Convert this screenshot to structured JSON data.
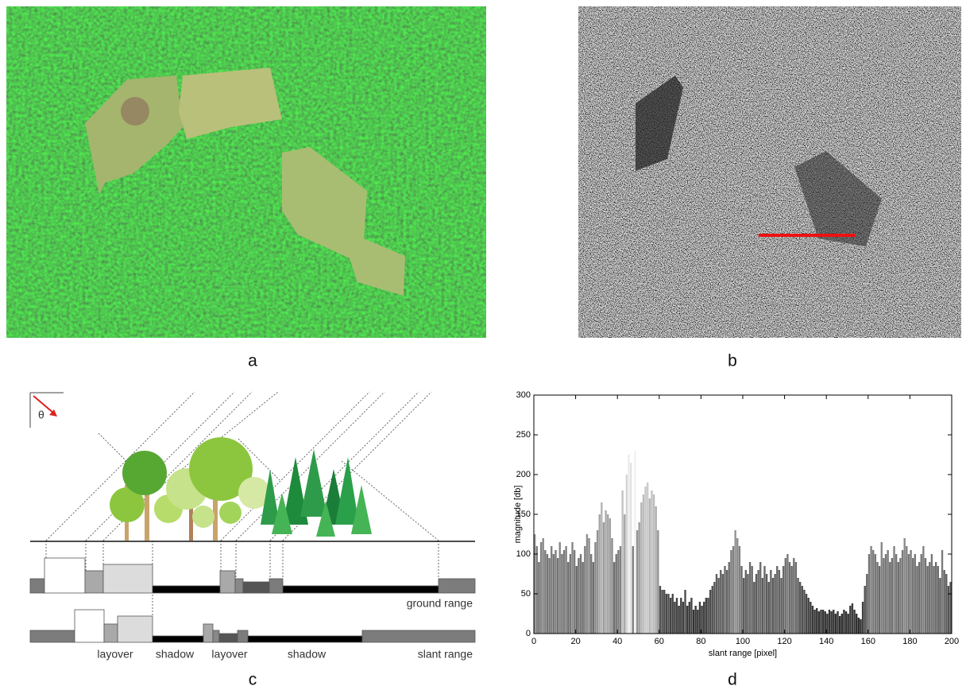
{
  "panels": {
    "a": "a",
    "b": "b",
    "c": "c",
    "d": "d"
  },
  "diagram": {
    "theta": "θ",
    "ground_range_label": "ground range",
    "slant_range_label": "slant range",
    "zone_labels": [
      "layover",
      "shadow",
      "layover",
      "shadow"
    ]
  },
  "chart_data": {
    "type": "bar",
    "xlabel": "slant range [pixel]",
    "ylabel": "magnitude [db]",
    "colormap": "gray",
    "xlim": [
      0,
      200
    ],
    "ylim": [
      0,
      300
    ],
    "xticks": [
      0,
      20,
      40,
      60,
      80,
      100,
      120,
      140,
      160,
      180,
      200
    ],
    "yticks": [
      0,
      50,
      100,
      150,
      200,
      250,
      300
    ],
    "x": [
      0,
      1,
      2,
      3,
      4,
      5,
      6,
      7,
      8,
      9,
      10,
      11,
      12,
      13,
      14,
      15,
      16,
      17,
      18,
      19,
      20,
      21,
      22,
      23,
      24,
      25,
      26,
      27,
      28,
      29,
      30,
      31,
      32,
      33,
      34,
      35,
      36,
      37,
      38,
      39,
      40,
      41,
      42,
      43,
      44,
      45,
      46,
      47,
      48,
      49,
      50,
      51,
      52,
      53,
      54,
      55,
      56,
      57,
      58,
      59,
      60,
      61,
      62,
      63,
      64,
      65,
      66,
      67,
      68,
      69,
      70,
      71,
      72,
      73,
      74,
      75,
      76,
      77,
      78,
      79,
      80,
      81,
      82,
      83,
      84,
      85,
      86,
      87,
      88,
      89,
      90,
      91,
      92,
      93,
      94,
      95,
      96,
      97,
      98,
      99,
      100,
      101,
      102,
      103,
      104,
      105,
      106,
      107,
      108,
      109,
      110,
      111,
      112,
      113,
      114,
      115,
      116,
      117,
      118,
      119,
      120,
      121,
      122,
      123,
      124,
      125,
      126,
      127,
      128,
      129,
      130,
      131,
      132,
      133,
      134,
      135,
      136,
      137,
      138,
      139,
      140,
      141,
      142,
      143,
      144,
      145,
      146,
      147,
      148,
      149,
      150,
      151,
      152,
      153,
      154,
      155,
      156,
      157,
      158,
      159,
      160,
      161,
      162,
      163,
      164,
      165,
      166,
      167,
      168,
      169,
      170,
      171,
      172,
      173,
      174,
      175,
      176,
      177,
      178,
      179,
      180,
      181,
      182,
      183,
      184,
      185,
      186,
      187,
      188,
      189,
      190,
      191,
      192,
      193,
      194,
      195,
      196,
      197,
      198,
      199
    ],
    "values": [
      125,
      110,
      90,
      115,
      120,
      105,
      100,
      95,
      110,
      100,
      105,
      95,
      115,
      100,
      105,
      110,
      90,
      100,
      115,
      105,
      85,
      95,
      100,
      90,
      110,
      125,
      120,
      100,
      90,
      115,
      130,
      150,
      165,
      140,
      155,
      150,
      145,
      120,
      90,
      100,
      105,
      110,
      180,
      150,
      200,
      225,
      215,
      110,
      230,
      130,
      140,
      165,
      175,
      185,
      190,
      170,
      180,
      175,
      160,
      130,
      60,
      55,
      55,
      50,
      50,
      45,
      50,
      40,
      45,
      35,
      45,
      40,
      55,
      35,
      40,
      45,
      30,
      35,
      30,
      40,
      35,
      40,
      45,
      45,
      55,
      60,
      65,
      75,
      70,
      80,
      75,
      85,
      80,
      90,
      105,
      110,
      130,
      120,
      110,
      85,
      70,
      80,
      75,
      90,
      85,
      65,
      75,
      80,
      90,
      70,
      85,
      75,
      65,
      80,
      70,
      75,
      85,
      80,
      70,
      85,
      95,
      100,
      90,
      85,
      95,
      90,
      70,
      65,
      60,
      55,
      50,
      45,
      40,
      35,
      30,
      32,
      28,
      30,
      30,
      28,
      25,
      30,
      28,
      30,
      25,
      28,
      22,
      25,
      30,
      28,
      25,
      35,
      38,
      30,
      25,
      20,
      18,
      40,
      60,
      75,
      100,
      110,
      105,
      100,
      90,
      85,
      115,
      95,
      100,
      105,
      90,
      95,
      110,
      100,
      90,
      95,
      105,
      120,
      110,
      100,
      105,
      95,
      100,
      85,
      90,
      100,
      110,
      95,
      85,
      90,
      100,
      85,
      90,
      85,
      70,
      105,
      80,
      75,
      60,
      65
    ]
  }
}
